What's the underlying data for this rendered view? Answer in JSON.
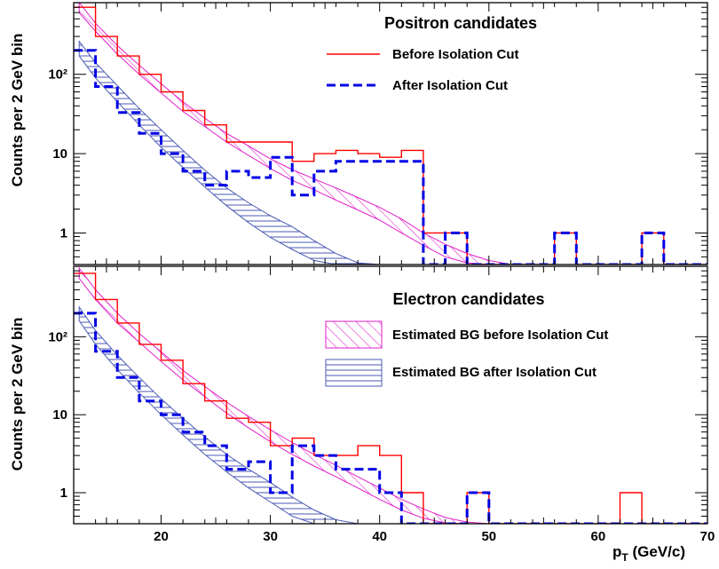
{
  "chart_data": [
    {
      "type": "line",
      "title": "Positron candidates",
      "ylabel": "Counts per 2 GeV bin",
      "xlabel": "",
      "xlim": [
        12,
        70
      ],
      "ylim": [
        0.4,
        800
      ],
      "yscale": "log",
      "yticks": [
        {
          "v": 1,
          "label": "1"
        },
        {
          "v": 10,
          "label": "10"
        },
        {
          "v": 100,
          "label": "10²"
        }
      ],
      "legend": "top-right",
      "colors": {
        "before": "#ff0000",
        "after": "#0000e6",
        "bg_before": "#e01ec8",
        "bg_after": "#4b5ab4"
      },
      "histograms": [
        {
          "name": "Before Isolation Cut",
          "bin_edges": [
            12,
            14,
            16,
            18,
            20,
            22,
            24,
            26,
            28,
            30,
            32,
            34,
            36,
            38,
            40,
            42,
            44,
            46,
            48,
            50,
            52,
            54,
            56,
            58,
            60,
            62,
            64,
            66,
            68,
            70
          ],
          "values": [
            700,
            300,
            170,
            100,
            60,
            35,
            23,
            14,
            14,
            14,
            8,
            10,
            11,
            10,
            9,
            11,
            1,
            1,
            0,
            0,
            0,
            0,
            1,
            0,
            0,
            0,
            1,
            0,
            0,
            0
          ]
        },
        {
          "name": "After Isolation Cut",
          "bin_edges": [
            12,
            14,
            16,
            18,
            20,
            22,
            24,
            26,
            28,
            30,
            32,
            34,
            36,
            38,
            40,
            42,
            44,
            46,
            48,
            50,
            52,
            54,
            56,
            58,
            60,
            62,
            64,
            66,
            68,
            70
          ],
          "values": [
            200,
            70,
            33,
            18,
            10,
            6,
            4,
            6,
            5,
            9,
            3,
            6,
            8,
            8,
            8,
            8,
            0,
            1,
            0,
            0,
            0,
            0,
            1,
            0,
            0,
            0,
            1,
            0,
            0,
            0
          ]
        }
      ],
      "bands": [
        {
          "x": [
            12.5,
            14,
            16,
            18,
            20,
            22,
            24,
            26,
            28,
            30,
            32,
            34,
            36,
            38,
            40,
            42,
            44,
            46,
            48,
            50,
            52
          ],
          "low": [
            600,
            350,
            180,
            100,
            58,
            34,
            22,
            14,
            9.5,
            6.5,
            4.6,
            3.5,
            2.6,
            1.95,
            1.45,
            1.0,
            0.7,
            0.5,
            0.42,
            0.4,
            0.4
          ],
          "high": [
            800,
            440,
            230,
            130,
            76,
            45,
            28,
            18,
            12.5,
            8.6,
            6.3,
            4.8,
            3.7,
            2.8,
            2.1,
            1.5,
            1.0,
            0.72,
            0.55,
            0.45,
            0.4
          ]
        },
        {
          "x": [
            12.5,
            14,
            16,
            18,
            20,
            22,
            24,
            26,
            28,
            30,
            32,
            34,
            36,
            38,
            40,
            42
          ],
          "low": [
            170,
            90,
            45,
            23,
            12,
            6.7,
            3.8,
            2.2,
            1.35,
            0.88,
            0.62,
            0.45,
            0.4,
            0.4,
            0.4,
            0.4
          ],
          "high": [
            260,
            140,
            72,
            37,
            20,
            11,
            6.2,
            3.7,
            2.4,
            1.65,
            1.2,
            0.8,
            0.55,
            0.42,
            0.4,
            0.4
          ]
        }
      ]
    },
    {
      "type": "line",
      "title": "Electron candidates",
      "ylabel": "Counts per 2 GeV bin",
      "xlabel": "p_T (GeV/c)",
      "xlim": [
        12,
        70
      ],
      "ylim": [
        0.4,
        800
      ],
      "yscale": "log",
      "xticks": [
        20,
        30,
        40,
        50,
        60,
        70
      ],
      "yticks": [
        {
          "v": 1,
          "label": "1"
        },
        {
          "v": 10,
          "label": "10"
        },
        {
          "v": 100,
          "label": "10²"
        }
      ],
      "legend": "top-right",
      "legend_entries": [
        "Estimated BG before Isolation Cut",
        "Estimated BG after Isolation Cut"
      ],
      "histograms": [
        {
          "name": "Before Isolation Cut",
          "bin_edges": [
            12,
            14,
            16,
            18,
            20,
            22,
            24,
            26,
            28,
            30,
            32,
            34,
            36,
            38,
            40,
            42,
            44,
            46,
            48,
            50,
            52,
            54,
            56,
            58,
            60,
            62,
            64,
            66,
            68,
            70
          ],
          "values": [
            650,
            300,
            150,
            80,
            50,
            25,
            15,
            9,
            8,
            4,
            5,
            3,
            3,
            4,
            3,
            1,
            0,
            0,
            1,
            0,
            0,
            0,
            0,
            0,
            0,
            1,
            0,
            0,
            0,
            0
          ]
        },
        {
          "name": "After Isolation Cut",
          "bin_edges": [
            12,
            14,
            16,
            18,
            20,
            22,
            24,
            26,
            28,
            30,
            32,
            34,
            36,
            38,
            40,
            42,
            44,
            46,
            48,
            50,
            52,
            54,
            56,
            58,
            60,
            62,
            64,
            66,
            68,
            70
          ],
          "values": [
            200,
            65,
            30,
            15,
            10,
            6,
            4,
            2,
            2.5,
            1,
            4,
            3,
            2,
            2,
            1,
            0,
            0,
            0,
            1,
            0,
            0,
            0,
            0,
            0,
            0,
            0,
            0,
            0,
            0,
            0
          ]
        }
      ],
      "bands": [
        {
          "x": [
            12.5,
            14,
            16,
            18,
            20,
            22,
            24,
            26,
            28,
            30,
            32,
            34,
            36,
            38,
            40,
            42,
            44,
            46,
            48,
            50
          ],
          "low": [
            560,
            300,
            150,
            85,
            48,
            28,
            17,
            10.5,
            6.8,
            4.5,
            3.1,
            2.2,
            1.6,
            1.15,
            0.82,
            0.6,
            0.47,
            0.41,
            0.4,
            0.4
          ],
          "high": [
            760,
            400,
            200,
            110,
            64,
            37,
            23,
            14.5,
            9.5,
            6.4,
            4.4,
            3.1,
            2.25,
            1.6,
            1.15,
            0.82,
            0.62,
            0.48,
            0.42,
            0.4
          ]
        },
        {
          "x": [
            12.5,
            14,
            16,
            18,
            20,
            22,
            24,
            26,
            28,
            30,
            32,
            34,
            36,
            38
          ],
          "low": [
            160,
            80,
            38,
            19,
            10,
            5.5,
            3.1,
            1.85,
            1.15,
            0.76,
            0.5,
            0.4,
            0.4,
            0.4
          ],
          "high": [
            240,
            120,
            58,
            30,
            16,
            9,
            5.2,
            3.1,
            2.0,
            1.35,
            0.88,
            0.6,
            0.45,
            0.4
          ]
        }
      ]
    }
  ],
  "x_axis_title": {
    "main": "p",
    "sub": "T",
    "rest": " (GeV/c)"
  }
}
